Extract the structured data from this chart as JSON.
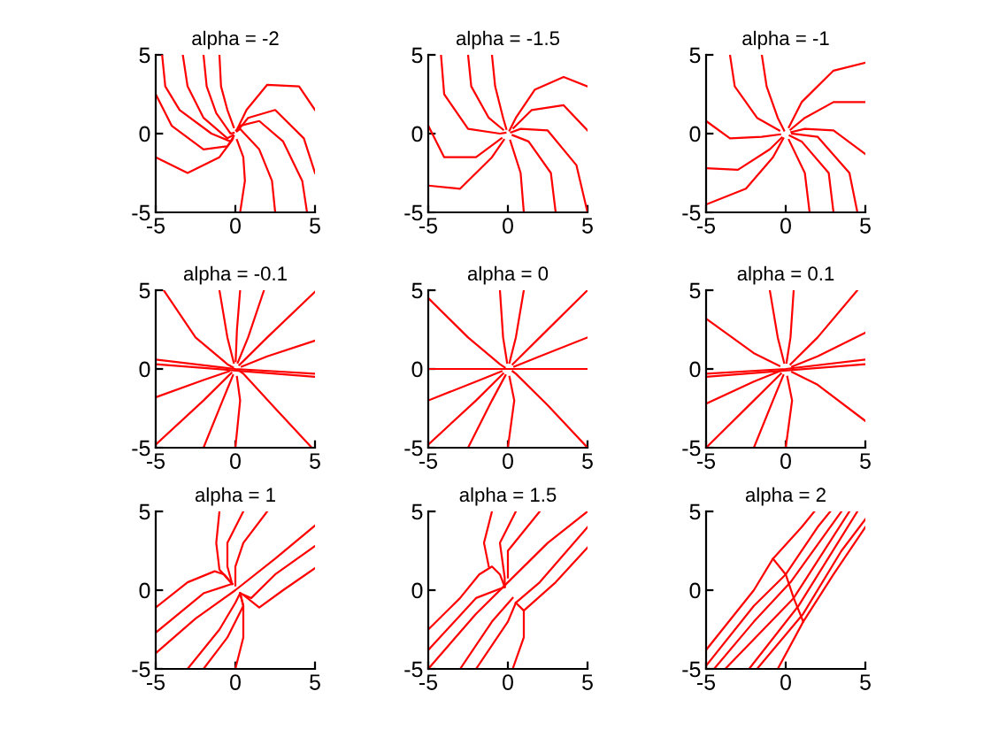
{
  "chart_data": [
    {
      "type": "line",
      "title": "alpha = -2",
      "xlim": [
        -5,
        5
      ],
      "ylim": [
        -5,
        5
      ],
      "xticks": [
        -5,
        0,
        5
      ],
      "yticks": [
        -5,
        0,
        5
      ],
      "series": [
        {
          "color": "#ff0000",
          "x": [
            -4.6,
            -4.4,
            -3.5,
            -1.5,
            -0.3,
            -0.1
          ],
          "values": [
            5,
            3,
            1.5,
            0,
            -0.5,
            -0.15
          ]
        },
        {
          "color": "#ff0000",
          "x": [
            -3.3,
            -3,
            -2,
            -0.5,
            -0.15
          ],
          "values": [
            5,
            3,
            1,
            -0.3,
            -0.1
          ]
        },
        {
          "color": "#ff0000",
          "x": [
            -2,
            -1.8,
            -1.2,
            -0.3,
            -0.1
          ],
          "values": [
            5,
            3,
            1.3,
            0,
            0.05
          ]
        },
        {
          "color": "#ff0000",
          "x": [
            -1,
            -0.9,
            -0.5,
            -0.1
          ],
          "values": [
            5,
            3,
            1.5,
            0.4
          ]
        },
        {
          "color": "#ff0000",
          "x": [
            -5,
            -4,
            -2,
            -0.5,
            -0.15
          ],
          "values": [
            2.5,
            0.5,
            -1,
            -0.8,
            -0.3
          ]
        },
        {
          "color": "#ff0000",
          "x": [
            -5,
            -3,
            -1,
            -0.2
          ],
          "values": [
            -1.5,
            -2.5,
            -1.5,
            -0.4
          ]
        },
        {
          "color": "#ff0000",
          "x": [
            0.3,
            0.6,
            0.5,
            0.1
          ],
          "values": [
            -5,
            -3,
            -1.5,
            -0.4
          ]
        },
        {
          "color": "#ff0000",
          "x": [
            2.5,
            2.3,
            1.5,
            0.3,
            0.1
          ],
          "values": [
            -5,
            -3,
            -1,
            0.3,
            0.15
          ]
        },
        {
          "color": "#ff0000",
          "x": [
            4.5,
            4.2,
            3,
            1.5,
            0.3,
            0.05
          ],
          "values": [
            -5,
            -3,
            -0.5,
            0.8,
            0.5,
            0.2
          ]
        },
        {
          "color": "#ff0000",
          "x": [
            5,
            4,
            2,
            0.7,
            0.15
          ],
          "values": [
            1.5,
            3,
            3.1,
            1.5,
            0.35
          ]
        },
        {
          "color": "#ff0000",
          "x": [
            5,
            4.3,
            2.5,
            0.8,
            0.2
          ],
          "values": [
            -2.5,
            -0.3,
            1.5,
            1,
            0.25
          ]
        }
      ]
    },
    {
      "type": "line",
      "title": "alpha = -1.5",
      "xlim": [
        -5,
        5
      ],
      "ylim": [
        -5,
        5
      ],
      "xticks": [
        -5,
        0,
        5
      ],
      "yticks": [
        -5,
        0,
        5
      ],
      "series": [
        {
          "color": "#ff0000",
          "x": [
            -4.2,
            -4,
            -2.5,
            -0.5,
            -0.15
          ],
          "values": [
            5,
            2.5,
            0.3,
            0,
            0.05
          ]
        },
        {
          "color": "#ff0000",
          "x": [
            -2.5,
            -2.3,
            -1.2,
            -0.3
          ],
          "values": [
            5,
            3,
            1,
            0.25
          ]
        },
        {
          "color": "#ff0000",
          "x": [
            -1,
            -0.8,
            -0.3,
            -0.1
          ],
          "values": [
            5,
            3,
            1,
            0.3
          ]
        },
        {
          "color": "#ff0000",
          "x": [
            -5,
            -4,
            -2,
            -0.4
          ],
          "values": [
            0.5,
            -1.5,
            -1.5,
            -0.3
          ]
        },
        {
          "color": "#ff0000",
          "x": [
            -5,
            -3,
            -1,
            -0.25
          ],
          "values": [
            -3.3,
            -3.5,
            -1.5,
            -0.4
          ]
        },
        {
          "color": "#ff0000",
          "x": [
            1,
            0.8,
            0.15
          ],
          "values": [
            -5,
            -2.5,
            -0.45
          ]
        },
        {
          "color": "#ff0000",
          "x": [
            3,
            2.7,
            1.3,
            0.3
          ],
          "values": [
            -5,
            -2.5,
            -0.5,
            -0.1
          ]
        },
        {
          "color": "#ff0000",
          "x": [
            5,
            4.3,
            2.5,
            0.8,
            0.2
          ],
          "values": [
            -5,
            -2,
            0.2,
            0.3,
            0.08
          ]
        },
        {
          "color": "#ff0000",
          "x": [
            5,
            3.5,
            1.7,
            0.5,
            0.1
          ],
          "values": [
            3,
            3.6,
            2.8,
            1,
            0.2
          ]
        },
        {
          "color": "#ff0000",
          "x": [
            5,
            3.5,
            1.5,
            0.35
          ],
          "values": [
            0.2,
            1.8,
            1.5,
            0.35
          ]
        }
      ]
    },
    {
      "type": "line",
      "title": "alpha = -1",
      "xlim": [
        -5,
        5
      ],
      "ylim": [
        -5,
        5
      ],
      "xticks": [
        -5,
        0,
        5
      ],
      "yticks": [
        -5,
        0,
        5
      ],
      "series": [
        {
          "color": "#ff0000",
          "x": [
            -3.5,
            -3.2,
            -1.8,
            -0.4
          ],
          "values": [
            5,
            3,
            1,
            0.2
          ]
        },
        {
          "color": "#ff0000",
          "x": [
            -1.5,
            -1.2,
            -0.5,
            -0.1
          ],
          "values": [
            5,
            3,
            1,
            0.2
          ]
        },
        {
          "color": "#ff0000",
          "x": [
            -5,
            -3.5,
            -1.5,
            -0.35
          ],
          "values": [
            0.8,
            -0.3,
            -0.2,
            -0.05
          ]
        },
        {
          "color": "#ff0000",
          "x": [
            -5,
            -3,
            -1,
            -0.25
          ],
          "values": [
            -2.2,
            -2.3,
            -1,
            -0.25
          ]
        },
        {
          "color": "#ff0000",
          "x": [
            -5,
            -2.5,
            -0.8,
            -0.15
          ],
          "values": [
            -4.5,
            -3.5,
            -1.5,
            -0.3
          ]
        },
        {
          "color": "#ff0000",
          "x": [
            1.5,
            1.2,
            0.2
          ],
          "values": [
            -5,
            -2.5,
            -0.4
          ]
        },
        {
          "color": "#ff0000",
          "x": [
            3,
            2.7,
            1,
            0.25
          ],
          "values": [
            -5,
            -2.5,
            -0.5,
            -0.12
          ]
        },
        {
          "color": "#ff0000",
          "x": [
            4.5,
            4,
            2,
            0.4
          ],
          "values": [
            -5,
            -2.5,
            -0.2,
            0
          ]
        },
        {
          "color": "#ff0000",
          "x": [
            5,
            3,
            1,
            0.2
          ],
          "values": [
            4.5,
            4,
            2,
            0.4
          ]
        },
        {
          "color": "#ff0000",
          "x": [
            5,
            3,
            1.2,
            0.3
          ],
          "values": [
            2,
            2,
            1,
            0.25
          ]
        },
        {
          "color": "#ff0000",
          "x": [
            5,
            3,
            1.2,
            0.35
          ],
          "values": [
            -1.3,
            0.2,
            0.3,
            0.1
          ]
        }
      ]
    },
    {
      "type": "line",
      "title": "alpha = -0.1",
      "xlim": [
        -5,
        5
      ],
      "ylim": [
        -5,
        5
      ],
      "xticks": [
        -5,
        0,
        5
      ],
      "yticks": [
        -5,
        0,
        5
      ],
      "series": [
        {
          "color": "#ff0000",
          "x": [
            -4.5,
            -2.5,
            -0.5,
            -0.15
          ],
          "values": [
            5,
            2,
            0.3,
            0.1
          ]
        },
        {
          "color": "#ff0000",
          "x": [
            -1,
            -0.5,
            -0.1
          ],
          "values": [
            5,
            2,
            0.4
          ]
        },
        {
          "color": "#ff0000",
          "x": [
            0.3,
            0.1,
            0.02
          ],
          "values": [
            5,
            2.5,
            0.5
          ]
        },
        {
          "color": "#ff0000",
          "x": [
            1.8,
            0.8,
            0.15
          ],
          "values": [
            5,
            2,
            0.4
          ]
        },
        {
          "color": "#ff0000",
          "x": [
            5,
            2,
            0.5,
            0.25
          ],
          "values": [
            4.9,
            2,
            0.5,
            0.25
          ]
        },
        {
          "color": "#ff0000",
          "x": [
            5,
            2,
            0.4
          ],
          "values": [
            1.8,
            0.8,
            0.15
          ]
        },
        {
          "color": "#ff0000",
          "x": [
            -5,
            0,
            5
          ],
          "values": [
            0.6,
            0,
            -0.3
          ]
        },
        {
          "color": "#ff0000",
          "x": [
            -5,
            5
          ],
          "values": [
            0.3,
            -0.5
          ]
        },
        {
          "color": "#ff0000",
          "x": [
            -5,
            -2,
            -0.4
          ],
          "values": [
            -1.8,
            -0.7,
            -0.15
          ]
        },
        {
          "color": "#ff0000",
          "x": [
            -5,
            -2,
            -0.5,
            -0.25
          ],
          "values": [
            -4.8,
            -2,
            -0.5,
            -0.25
          ]
        },
        {
          "color": "#ff0000",
          "x": [
            -2,
            -0.8,
            -0.15
          ],
          "values": [
            -5,
            -2,
            -0.4
          ]
        },
        {
          "color": "#ff0000",
          "x": [
            0,
            0.3,
            0.1
          ],
          "values": [
            -5,
            -2,
            -0.5
          ]
        },
        {
          "color": "#ff0000",
          "x": [
            4.8,
            2.5,
            0.5,
            0.3
          ],
          "values": [
            -5,
            -2.5,
            -0.3,
            -0.15
          ]
        }
      ]
    },
    {
      "type": "line",
      "title": "alpha = 0",
      "xlim": [
        -5,
        5
      ],
      "ylim": [
        -5,
        5
      ],
      "xticks": [
        -5,
        0,
        5
      ],
      "yticks": [
        -5,
        0,
        5
      ],
      "series": [
        {
          "color": "#ff0000",
          "x": [
            -5,
            -2.5,
            -0.5,
            -0.2
          ],
          "values": [
            4.5,
            2,
            0.3,
            0.1
          ]
        },
        {
          "color": "#ff0000",
          "x": [
            -0.5,
            -0.3,
            -0.05
          ],
          "values": [
            5,
            2,
            0.4
          ]
        },
        {
          "color": "#ff0000",
          "x": [
            1,
            0.5,
            0.1
          ],
          "values": [
            5,
            2,
            0.4
          ]
        },
        {
          "color": "#ff0000",
          "x": [
            5,
            2,
            0.3
          ],
          "values": [
            5,
            2,
            0.3
          ]
        },
        {
          "color": "#ff0000",
          "x": [
            5,
            2,
            0.4
          ],
          "values": [
            2,
            0.8,
            0.15
          ]
        },
        {
          "color": "#ff0000",
          "x": [
            -5,
            5
          ],
          "values": [
            0,
            0
          ]
        },
        {
          "color": "#ff0000",
          "x": [
            -5,
            -2,
            -0.4
          ],
          "values": [
            -2,
            -0.8,
            -0.15
          ]
        },
        {
          "color": "#ff0000",
          "x": [
            -5,
            -2,
            -0.3
          ],
          "values": [
            -4.8,
            -2,
            -0.3
          ]
        },
        {
          "color": "#ff0000",
          "x": [
            -2.5,
            -1,
            -0.15
          ],
          "values": [
            -5,
            -2,
            -0.4
          ]
        },
        {
          "color": "#ff0000",
          "x": [
            0,
            0.4,
            0.1
          ],
          "values": [
            -5,
            -2,
            -0.5
          ]
        },
        {
          "color": "#ff0000",
          "x": [
            5,
            2.5,
            0.5,
            0.3
          ],
          "values": [
            -5,
            -2.3,
            -0.3,
            -0.15
          ]
        }
      ]
    },
    {
      "type": "line",
      "title": "alpha = 0.1",
      "xlim": [
        -5,
        5
      ],
      "ylim": [
        -5,
        5
      ],
      "xticks": [
        -5,
        0,
        5
      ],
      "yticks": [
        -5,
        0,
        5
      ],
      "series": [
        {
          "color": "#ff0000",
          "x": [
            -5,
            -2,
            -0.4
          ],
          "values": [
            3.2,
            1,
            0.2
          ]
        },
        {
          "color": "#ff0000",
          "x": [
            -1,
            -0.5,
            -0.1
          ],
          "values": [
            5,
            2,
            0.4
          ]
        },
        {
          "color": "#ff0000",
          "x": [
            0.5,
            0.3,
            0.05
          ],
          "values": [
            5,
            2,
            0.4
          ]
        },
        {
          "color": "#ff0000",
          "x": [
            4.5,
            2,
            0.3
          ],
          "values": [
            5,
            2,
            0.3
          ]
        },
        {
          "color": "#ff0000",
          "x": [
            5,
            2,
            0.4
          ],
          "values": [
            2.3,
            0.8,
            0.15
          ]
        },
        {
          "color": "#ff0000",
          "x": [
            -5,
            0,
            5
          ],
          "values": [
            -0.3,
            0,
            0.6
          ]
        },
        {
          "color": "#ff0000",
          "x": [
            -5,
            5
          ],
          "values": [
            -0.5,
            0.3
          ]
        },
        {
          "color": "#ff0000",
          "x": [
            -5,
            -2,
            -0.4
          ],
          "values": [
            -2.2,
            -0.8,
            -0.15
          ]
        },
        {
          "color": "#ff0000",
          "x": [
            -5,
            -2,
            -0.3
          ],
          "values": [
            -5,
            -2,
            -0.3
          ]
        },
        {
          "color": "#ff0000",
          "x": [
            -2,
            -0.8,
            -0.15
          ],
          "values": [
            -5,
            -2,
            -0.4
          ]
        },
        {
          "color": "#ff0000",
          "x": [
            0,
            0.4,
            0.1
          ],
          "values": [
            -5,
            -2,
            -0.5
          ]
        },
        {
          "color": "#ff0000",
          "x": [
            5,
            2,
            0.4
          ],
          "values": [
            -3.3,
            -1,
            -0.2
          ]
        }
      ]
    },
    {
      "type": "line",
      "title": "alpha = 1",
      "xlim": [
        -5,
        5
      ],
      "ylim": [
        -5,
        5
      ],
      "xticks": [
        -5,
        0,
        5
      ],
      "yticks": [
        -5,
        0,
        5
      ],
      "series": [
        {
          "color": "#ff0000",
          "x": [
            -5,
            -3,
            -1.3,
            -0.7,
            -0.2
          ],
          "values": [
            -1.1,
            0.5,
            1.2,
            1,
            0.4
          ]
        },
        {
          "color": "#ff0000",
          "x": [
            -5,
            -2.5,
            0,
            2.5,
            5
          ],
          "values": [
            -4,
            -1.8,
            0,
            2,
            4.1
          ]
        },
        {
          "color": "#ff0000",
          "x": [
            -5,
            -2,
            -0.2
          ],
          "values": [
            -2.7,
            -0.2,
            0.4
          ]
        },
        {
          "color": "#ff0000",
          "x": [
            -1,
            -1.2,
            -1,
            -0.2
          ],
          "values": [
            5,
            3,
            1.3,
            0.4
          ]
        },
        {
          "color": "#ff0000",
          "x": [
            0.5,
            -0.5,
            -0.5,
            -0.2
          ],
          "values": [
            5,
            3,
            1.5,
            0.4
          ]
        },
        {
          "color": "#ff0000",
          "x": [
            2,
            0.5,
            0,
            0
          ],
          "values": [
            5,
            3,
            1.5,
            0.3
          ]
        },
        {
          "color": "#ff0000",
          "x": [
            5,
            2.5,
            1,
            0.3
          ],
          "values": [
            2.8,
            1,
            -0.5,
            -0.2
          ]
        },
        {
          "color": "#ff0000",
          "x": [
            5,
            3,
            1.5,
            0.5
          ],
          "values": [
            1.4,
            0,
            -1.1,
            -0.3
          ]
        },
        {
          "color": "#ff0000",
          "x": [
            -3,
            -1,
            0,
            0.3
          ],
          "values": [
            -5,
            -2.5,
            -0.8,
            -0.2
          ]
        },
        {
          "color": "#ff0000",
          "x": [
            -2,
            -0.5,
            0.5,
            0.3
          ],
          "values": [
            -5,
            -3,
            -1,
            -0.2
          ]
        },
        {
          "color": "#ff0000",
          "x": [
            0,
            0.5,
            0.5,
            0.3
          ],
          "values": [
            -5,
            -3,
            -1,
            -0.2
          ]
        }
      ]
    },
    {
      "type": "line",
      "title": "alpha = 1.5",
      "xlim": [
        -5,
        5
      ],
      "ylim": [
        -5,
        5
      ],
      "xticks": [
        -5,
        0,
        5
      ],
      "yticks": [
        -5,
        0,
        5
      ],
      "series": [
        {
          "color": "#ff0000",
          "x": [
            -5,
            -2,
            0,
            2.5,
            5
          ],
          "values": [
            -5,
            -1.5,
            0.5,
            3,
            5
          ]
        },
        {
          "color": "#ff0000",
          "x": [
            -5,
            -3,
            -1.8,
            -1,
            -0.5,
            -0.2
          ],
          "values": [
            -2.5,
            -0.5,
            1,
            1.5,
            1,
            0.2
          ]
        },
        {
          "color": "#ff0000",
          "x": [
            -5,
            -2,
            -0.2
          ],
          "values": [
            -3.8,
            -0.5,
            0.2
          ]
        },
        {
          "color": "#ff0000",
          "x": [
            -1,
            -1.5,
            -1.2
          ],
          "values": [
            5,
            3,
            1.5
          ]
        },
        {
          "color": "#ff0000",
          "x": [
            0.5,
            -0.5,
            -0.2,
            -0.2
          ],
          "values": [
            5,
            3,
            0.8,
            0.2
          ]
        },
        {
          "color": "#ff0000",
          "x": [
            2,
            0,
            0
          ],
          "values": [
            5,
            2.5,
            0.8
          ]
        },
        {
          "color": "#ff0000",
          "x": [
            5,
            2,
            0.5
          ],
          "values": [
            4,
            0.5,
            -0.8
          ]
        },
        {
          "color": "#ff0000",
          "x": [
            5,
            3,
            1,
            0.5
          ],
          "values": [
            2.7,
            0.5,
            -1.3,
            -0.8
          ]
        },
        {
          "color": "#ff0000",
          "x": [
            -3,
            -1,
            0.3
          ],
          "values": [
            -5,
            -2,
            -0.5
          ]
        },
        {
          "color": "#ff0000",
          "x": [
            -2,
            0,
            0.5
          ],
          "values": [
            -5,
            -2,
            -0.8
          ]
        },
        {
          "color": "#ff0000",
          "x": [
            0.3,
            1,
            1
          ],
          "values": [
            -5,
            -3,
            -1.3
          ]
        }
      ]
    },
    {
      "type": "line",
      "title": "alpha = 2",
      "xlim": [
        -5,
        5
      ],
      "ylim": [
        -5,
        5
      ],
      "xticks": [
        -5,
        0,
        5
      ],
      "yticks": [
        -5,
        0,
        5
      ],
      "series": [
        {
          "color": "#ff0000",
          "x": [
            -0.8,
            0,
            0.5,
            1.1
          ],
          "values": [
            2,
            1,
            -0.5,
            -2
          ]
        },
        {
          "color": "#ff0000",
          "x": [
            -5,
            -2,
            -0.8,
            1,
            1.8
          ],
          "values": [
            -3.8,
            0,
            2,
            4,
            5
          ]
        },
        {
          "color": "#ff0000",
          "x": [
            -5,
            -2,
            0,
            2,
            2.8
          ],
          "values": [
            -4.8,
            -1,
            1,
            4,
            5
          ]
        },
        {
          "color": "#ff0000",
          "x": [
            -4.5,
            -2,
            0.3,
            3.5
          ],
          "values": [
            -5,
            -2,
            0.5,
            5
          ]
        },
        {
          "color": "#ff0000",
          "x": [
            -3.8,
            0.5,
            4
          ],
          "values": [
            -5,
            -0.5,
            5
          ]
        },
        {
          "color": "#ff0000",
          "x": [
            -2.3,
            0.8,
            4.5
          ],
          "values": [
            -5,
            -1,
            5
          ]
        },
        {
          "color": "#ff0000",
          "x": [
            -1.8,
            1.1,
            3.5,
            5
          ],
          "values": [
            -5,
            -1.5,
            2.5,
            4.5
          ]
        },
        {
          "color": "#ff0000",
          "x": [
            -0.5,
            1.1,
            3,
            5
          ],
          "values": [
            -5,
            -2,
            1,
            4
          ]
        }
      ]
    }
  ]
}
